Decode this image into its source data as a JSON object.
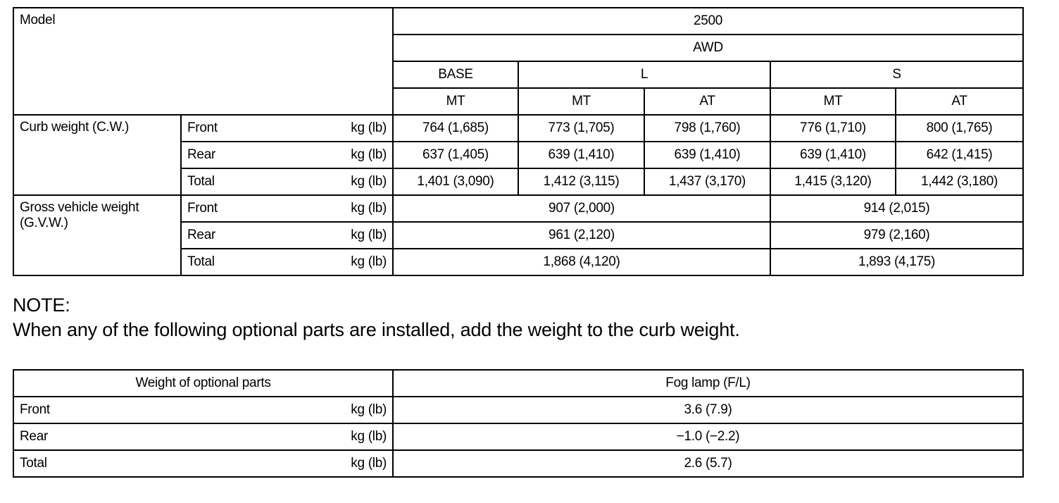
{
  "spec_table": {
    "model_label": "Model",
    "model": "2500",
    "drive": "AWD",
    "grades": [
      "BASE",
      "L",
      "S"
    ],
    "transmissions": [
      "MT",
      "MT",
      "AT",
      "MT",
      "AT"
    ],
    "unit": "kg (lb)",
    "curb_weight": {
      "label": "Curb weight (C.W.)",
      "rows": [
        {
          "label": "Front",
          "values": [
            "764 (1,685)",
            "773 (1,705)",
            "798 (1,760)",
            "776 (1,710)",
            "800 (1,765)"
          ]
        },
        {
          "label": "Rear",
          "values": [
            "637 (1,405)",
            "639 (1,410)",
            "639 (1,410)",
            "639 (1,410)",
            "642 (1,415)"
          ]
        },
        {
          "label": "Total",
          "values": [
            "1,401 (3,090)",
            "1,412 (3,115)",
            "1,437 (3,170)",
            "1,415 (3,120)",
            "1,442 (3,180)"
          ]
        }
      ]
    },
    "gvw": {
      "label_line1": "Gross vehicle weight",
      "label_line2": "(G.V.W.)",
      "rows": [
        {
          "label": "Front",
          "values": [
            "907 (2,000)",
            "914 (2,015)"
          ]
        },
        {
          "label": "Rear",
          "values": [
            "961 (2,120)",
            "979 (2,160)"
          ]
        },
        {
          "label": "Total",
          "values": [
            "1,868 (4,120)",
            "1,893 (4,175)"
          ]
        }
      ]
    }
  },
  "note": {
    "title": "NOTE:",
    "text": "When any of the following optional parts are installed, add the weight to the curb weight."
  },
  "optional_table": {
    "header": "Weight of optional parts",
    "column": "Fog lamp (F/L)",
    "unit": "kg (lb)",
    "rows": [
      {
        "label": "Front",
        "value": "3.6 (7.9)"
      },
      {
        "label": "Rear",
        "value": "−1.0 (−2.2)"
      },
      {
        "label": "Total",
        "value": "2.6 (5.7)"
      }
    ]
  }
}
